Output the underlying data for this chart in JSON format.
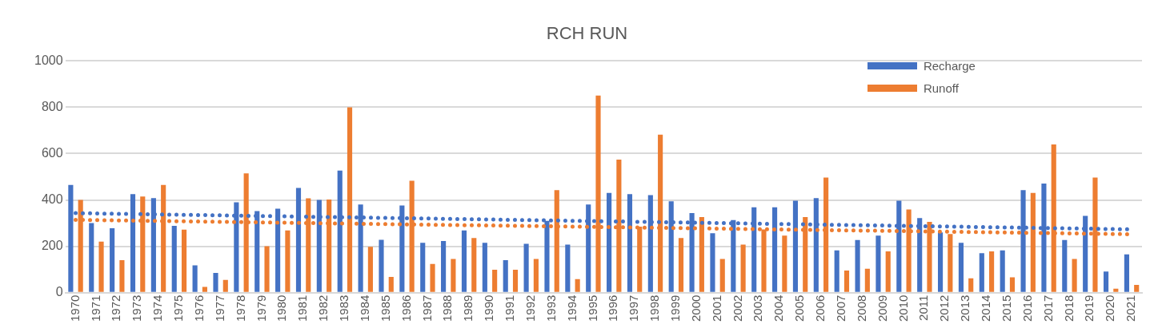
{
  "chart_data": {
    "type": "bar",
    "title": "RCH RUN",
    "categories": [
      "1970",
      "1971",
      "1972",
      "1973",
      "1974",
      "1975",
      "1976",
      "1977",
      "1978",
      "1979",
      "1980",
      "1981",
      "1982",
      "1983",
      "1984",
      "1985",
      "1986",
      "1987",
      "1988",
      "1989",
      "1990",
      "1991",
      "1992",
      "1993",
      "1994",
      "1995",
      "1996",
      "1997",
      "1998",
      "1999",
      "2000",
      "2001",
      "2002",
      "2003",
      "2004",
      "2005",
      "2006",
      "2007",
      "2008",
      "2009",
      "2010",
      "2011",
      "2012",
      "2013",
      "2014",
      "2015",
      "2016",
      "2017",
      "2018",
      "2019",
      "2020",
      "2021"
    ],
    "series": [
      {
        "name": "Recharge",
        "color": "#4472c4",
        "values": [
          465,
          300,
          278,
          425,
          408,
          288,
          118,
          85,
          390,
          352,
          362,
          452,
          400,
          527,
          380,
          228,
          376,
          215,
          223,
          268,
          215,
          140,
          211,
          310,
          207,
          380,
          430,
          425,
          421,
          394,
          343,
          256,
          313,
          368,
          368,
          397,
          408,
          182,
          227,
          246,
          397,
          322,
          260,
          215,
          170,
          182,
          442,
          471,
          227,
          331,
          91,
          165
        ]
      },
      {
        "name": "Runoff",
        "color": "#ed7d31",
        "values": [
          400,
          220,
          140,
          415,
          465,
          272,
          25,
          55,
          515,
          200,
          268,
          407,
          402,
          800,
          198,
          68,
          483,
          124,
          145,
          236,
          99,
          99,
          145,
          442,
          58,
          851,
          574,
          285,
          682,
          236,
          326,
          145,
          207,
          273,
          246,
          326,
          497,
          95,
          103,
          178,
          359,
          305,
          253,
          62,
          178,
          66,
          430,
          640,
          145,
          497,
          17,
          33
        ]
      },
      {
        "type": "line",
        "color": "#4472c4",
        "line_style": "dotted",
        "values": [
          343,
          null,
          null,
          null,
          null,
          null,
          null,
          null,
          null,
          null,
          null,
          null,
          null,
          null,
          null,
          null,
          null,
          null,
          null,
          null,
          null,
          null,
          null,
          null,
          null,
          null,
          null,
          null,
          null,
          null,
          null,
          null,
          null,
          null,
          null,
          null,
          null,
          null,
          null,
          null,
          null,
          null,
          null,
          null,
          null,
          null,
          null,
          null,
          null,
          null,
          null,
          273
        ]
      },
      {
        "type": "line",
        "color": "#ed7d31",
        "line_style": "dotted",
        "values": [
          314,
          null,
          null,
          null,
          null,
          null,
          null,
          null,
          null,
          null,
          null,
          null,
          null,
          null,
          null,
          null,
          null,
          null,
          null,
          null,
          null,
          null,
          null,
          null,
          null,
          null,
          null,
          null,
          null,
          null,
          null,
          null,
          null,
          null,
          null,
          null,
          null,
          null,
          null,
          null,
          null,
          null,
          null,
          null,
          null,
          null,
          null,
          null,
          null,
          null,
          null,
          252
        ]
      }
    ],
    "ylim": [
      0,
      1000
    ],
    "yticks": [
      0,
      200,
      400,
      600,
      800,
      1000
    ],
    "grid": "y",
    "legend": "top right"
  }
}
